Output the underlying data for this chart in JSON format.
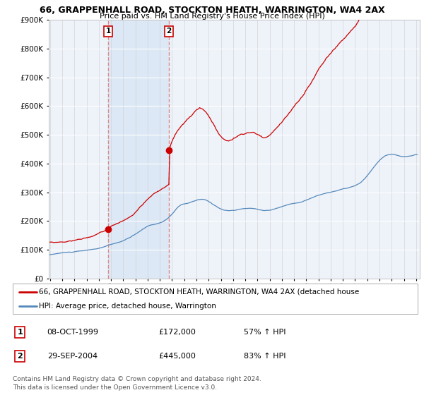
{
  "title1": "66, GRAPPENHALL ROAD, STOCKTON HEATH, WARRINGTON, WA4 2AX",
  "title2": "Price paid vs. HM Land Registry's House Price Index (HPI)",
  "legend_line1": "66, GRAPPENHALL ROAD, STOCKTON HEATH, WARRINGTON, WA4 2AX (detached house",
  "legend_line2": "HPI: Average price, detached house, Warrington",
  "transaction1_date": "08-OCT-1999",
  "transaction1_price": "£172,000",
  "transaction1_hpi": "57% ↑ HPI",
  "transaction2_date": "29-SEP-2004",
  "transaction2_price": "£445,000",
  "transaction2_hpi": "83% ↑ HPI",
  "footer": "Contains HM Land Registry data © Crown copyright and database right 2024.\nThis data is licensed under the Open Government Licence v3.0.",
  "red_color": "#cc0000",
  "blue_color": "#5588bb",
  "vline_color": "#dd8888",
  "highlight_color": "#dce8f5",
  "ylim": [
    0,
    900000
  ],
  "yticks": [
    0,
    100000,
    200000,
    300000,
    400000,
    500000,
    600000,
    700000,
    800000,
    900000
  ],
  "background_color": "#ffffff",
  "plot_bg": "#eef3fa",
  "transaction1_x": 1999.77,
  "transaction2_x": 2004.74,
  "transaction1_y": 172000,
  "transaction2_y": 445000,
  "xmin": 1994.9,
  "xmax": 2025.3
}
